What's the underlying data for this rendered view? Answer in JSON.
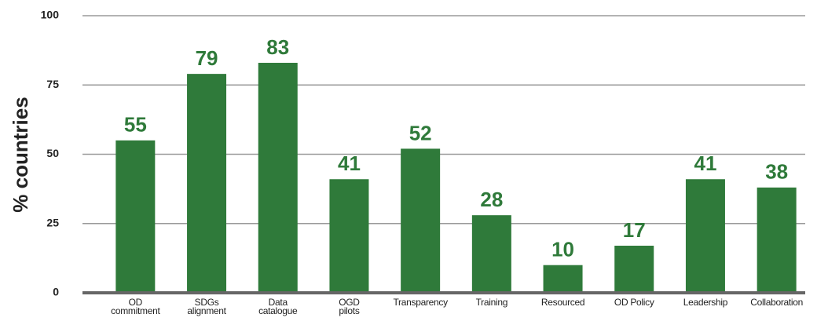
{
  "chart_data": {
    "type": "bar",
    "y_label": "% countries",
    "categories": [
      "OD\ncommitment",
      "SDGs\nalignment",
      "Data\ncatalogue",
      "OGD\npilots",
      "Transparency",
      "Training",
      "Resourced",
      "OD Policy",
      "Leadership",
      "Collaboration"
    ],
    "values": [
      55,
      79,
      83,
      41,
      52,
      28,
      10,
      17,
      41,
      38
    ],
    "color": "#2f7a3a",
    "ylim": [
      0,
      100
    ],
    "yticks": [
      0,
      25,
      50,
      75,
      100
    ],
    "grid": true
  }
}
